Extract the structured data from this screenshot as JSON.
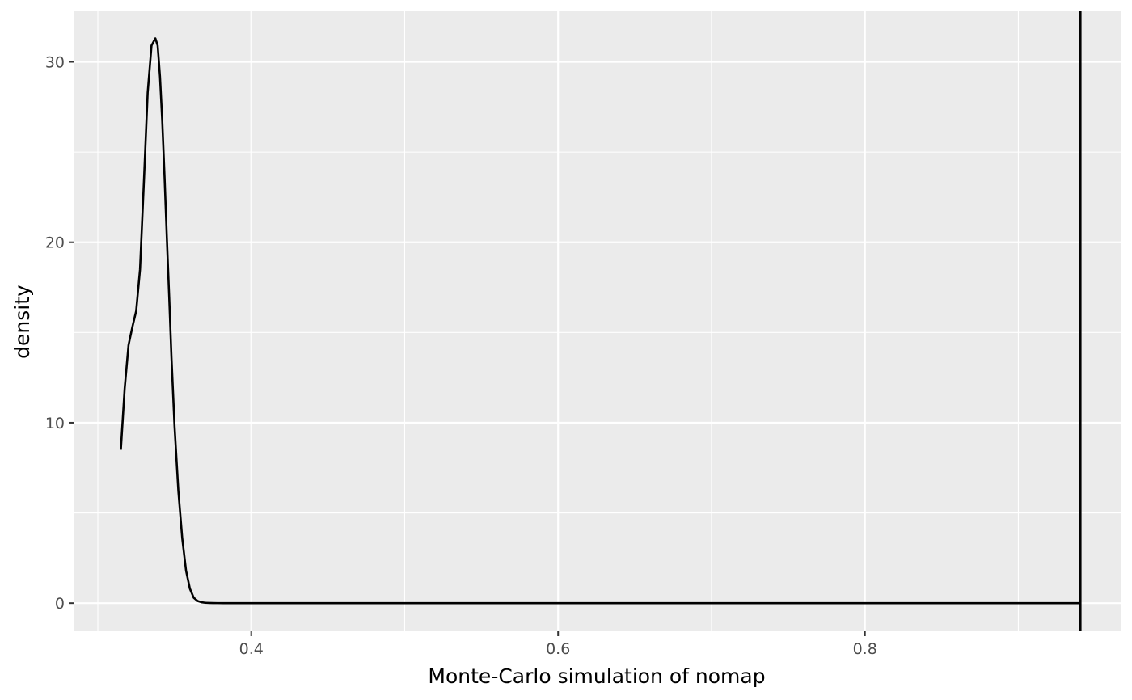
{
  "chart_data": {
    "type": "line",
    "title": "",
    "xlabel": "Monte-Carlo simulation of nomap",
    "ylabel": "density",
    "xlim": [
      0.2842,
      0.9667
    ],
    "ylim": [
      -1.56,
      32.8
    ],
    "x_ticks": [
      {
        "value": 0.4,
        "label": "0.4"
      },
      {
        "value": 0.6,
        "label": "0.6"
      },
      {
        "value": 0.8,
        "label": "0.8"
      }
    ],
    "x_minor_ticks": [
      0.3,
      0.5,
      0.7,
      0.9
    ],
    "y_ticks": [
      {
        "value": 0,
        "label": "0"
      },
      {
        "value": 10,
        "label": "10"
      },
      {
        "value": 20,
        "label": "20"
      },
      {
        "value": 30,
        "label": "30"
      }
    ],
    "y_minor_ticks": [
      5,
      15,
      25
    ],
    "grid": true,
    "legend": "none",
    "colors": {
      "panel_background": "#ebebeb",
      "grid": "#ffffff",
      "line": "#000000",
      "tick_label": "#4d4d4d",
      "tick_mark": "#333333"
    },
    "series": [
      {
        "x": [
          0.315,
          0.3175,
          0.32,
          0.3225,
          0.325,
          0.3275,
          0.33,
          0.3325,
          0.335,
          0.3375,
          0.339,
          0.3405,
          0.342,
          0.3435,
          0.345,
          0.3465,
          0.348,
          0.35,
          0.3525,
          0.355,
          0.3575,
          0.36,
          0.3625,
          0.365,
          0.3675,
          0.37,
          0.3725,
          0.375,
          0.378,
          0.382,
          0.39,
          0.4,
          0.5,
          0.6,
          0.7,
          0.8,
          0.9,
          0.9405
        ],
        "y": [
          8.5,
          11.9,
          14.3,
          15.3,
          16.2,
          18.5,
          23.3,
          28.3,
          30.9,
          31.3,
          30.9,
          29.2,
          26.7,
          23.6,
          20.2,
          17.0,
          13.6,
          9.8,
          6.2,
          3.6,
          1.8,
          0.8,
          0.3,
          0.12,
          0.05,
          0.02,
          0.01,
          0.005,
          0.002,
          0.0,
          0.0,
          0.0,
          0.0,
          0.0,
          0.0,
          0.0,
          0.0,
          0.0
        ]
      }
    ],
    "vline": {
      "x": 0.9405
    }
  }
}
